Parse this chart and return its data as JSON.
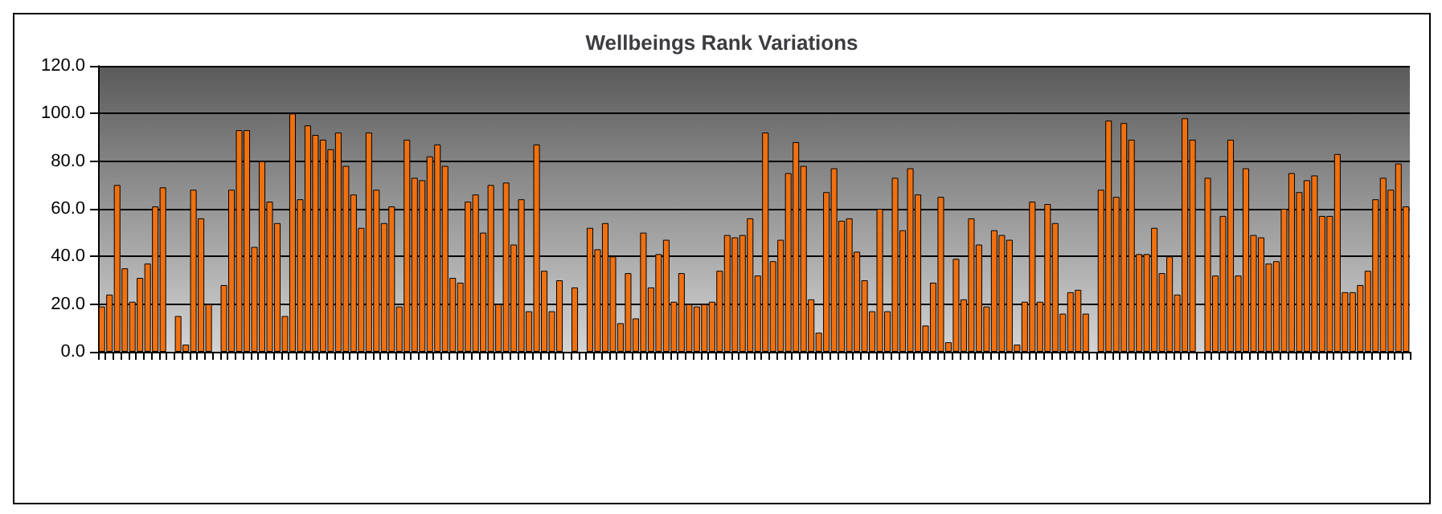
{
  "chart_data": {
    "type": "bar",
    "title": "Wellbeings Rank Variations",
    "categories": [
      null,
      null,
      null,
      null,
      null,
      null,
      null,
      null,
      null,
      null,
      null,
      null,
      null,
      null,
      null,
      null,
      null,
      null,
      null,
      null,
      null,
      null,
      null,
      null,
      null,
      null,
      null,
      null,
      null,
      null,
      null,
      null,
      null,
      null,
      null,
      null,
      null,
      null,
      null,
      null,
      null,
      null,
      null,
      null,
      null,
      null,
      null,
      null,
      null,
      null,
      null,
      null,
      null,
      null,
      null,
      null,
      null,
      null,
      null,
      null,
      null,
      null,
      null,
      null,
      null,
      null,
      null,
      null,
      null,
      null,
      null,
      null,
      null,
      null,
      null,
      null,
      null,
      null,
      null,
      null,
      null,
      null,
      null,
      null,
      null,
      null,
      null,
      null,
      null,
      null,
      null,
      null,
      null,
      null,
      null,
      null,
      null,
      null,
      null,
      null,
      null,
      null,
      null,
      null,
      null,
      null,
      null,
      null,
      null,
      null,
      null,
      null,
      null,
      null,
      null,
      null,
      null,
      null,
      null,
      null,
      null,
      null,
      null,
      null,
      null,
      null,
      null,
      null,
      null,
      null,
      null,
      null,
      null,
      null,
      null,
      null,
      null,
      null,
      null,
      null,
      null,
      null,
      null,
      null,
      null,
      null,
      null,
      null,
      null,
      null,
      null,
      null,
      null,
      null,
      null,
      null,
      null,
      null,
      null,
      null,
      null,
      null,
      null,
      null,
      null,
      null,
      null,
      null,
      null,
      null,
      null,
      null
    ],
    "values": [
      19,
      24,
      70,
      35,
      21,
      31,
      37,
      61,
      69,
      null,
      15,
      3,
      68,
      56,
      20,
      null,
      28,
      68,
      93,
      93,
      44,
      80,
      63,
      54,
      15,
      100,
      64,
      95,
      91,
      89,
      85,
      92,
      78,
      66,
      52,
      92,
      68,
      54,
      61,
      19,
      89,
      73,
      72,
      82,
      87,
      78,
      31,
      29,
      63,
      66,
      50,
      70,
      20,
      71,
      45,
      64,
      17,
      87,
      34,
      17,
      30,
      null,
      27,
      null,
      52,
      43,
      54,
      40,
      12,
      33,
      14,
      50,
      27,
      41,
      47,
      21,
      33,
      20,
      19,
      20,
      21,
      34,
      49,
      48,
      49,
      56,
      32,
      92,
      38,
      47,
      75,
      88,
      78,
      22,
      8,
      67,
      77,
      55,
      56,
      42,
      30,
      17,
      60,
      17,
      73,
      51,
      77,
      66,
      11,
      29,
      65,
      4,
      39,
      22,
      56,
      45,
      19,
      51,
      49,
      47,
      3,
      21,
      63,
      21,
      62,
      54,
      16,
      25,
      26,
      16,
      null,
      68,
      97,
      65,
      96,
      89,
      41,
      41,
      52,
      33,
      40,
      24,
      98,
      89,
      null,
      73,
      32,
      57,
      89,
      32,
      77,
      49,
      48,
      37,
      38,
      60,
      75,
      67,
      72,
      74,
      57,
      57,
      83,
      25,
      25,
      28,
      34,
      64,
      73,
      68,
      79,
      61
    ],
    "color": "#f07010",
    "ylim": [
      0,
      120
    ],
    "yticks": [
      {
        "value": 0,
        "label": "0.0"
      },
      {
        "value": 20,
        "label": "20.0"
      },
      {
        "value": 40,
        "label": "40.0"
      },
      {
        "value": 60,
        "label": "60.0"
      },
      {
        "value": 80,
        "label": "80.0"
      },
      {
        "value": 100,
        "label": "100.0"
      },
      {
        "value": 120,
        "label": "120.0"
      }
    ],
    "grid": "y"
  }
}
